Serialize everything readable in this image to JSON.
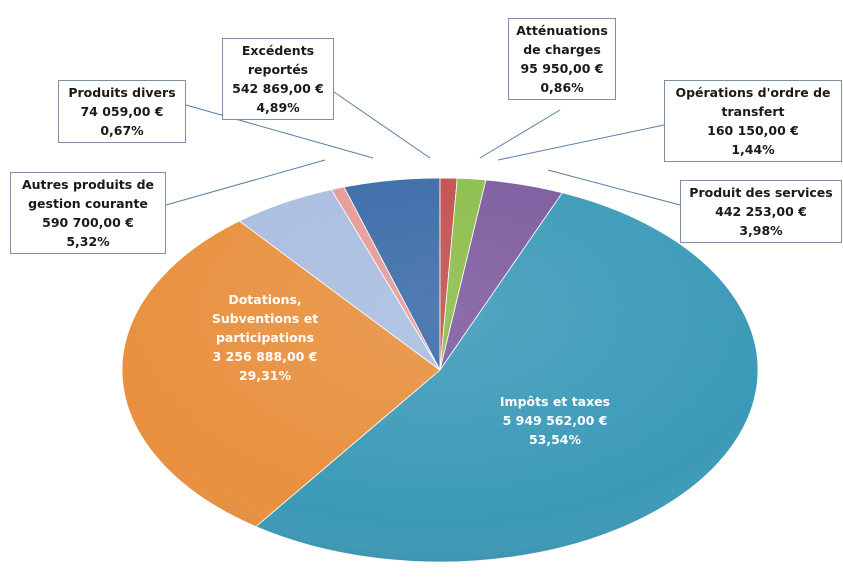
{
  "chart_data": {
    "type": "pie",
    "categories": [
      "Excédents reportés",
      "Atténuations de charges",
      "Opérations d'ordre de transfert",
      "Produit des services",
      "Impôts et taxes",
      "Dotations, Subventions et participations",
      "Autres produits de gestion courante",
      "Produits divers"
    ],
    "values": [
      542869,
      95950,
      160150,
      442253,
      5949562,
      3256888,
      590700,
      74059
    ],
    "value_labels": [
      "542 869,00 €",
      "95 950,00 €",
      "160 150,00 €",
      "442 253,00 €",
      "5 949 562,00 €",
      "3 256 888,00 €",
      "590 700,00 €",
      "74 059,00 €"
    ],
    "percents": [
      4.89,
      0.86,
      1.44,
      3.98,
      53.54,
      29.31,
      5.32,
      0.67
    ],
    "percent_labels": [
      "4,89%",
      "0,86%",
      "1,44%",
      "3,98%",
      "53,54%",
      "29,31%",
      "5,32%",
      "0,67%"
    ],
    "colors": [
      "#3a6aa8",
      "#c0504d",
      "#8bbd4a",
      "#7d5a9e",
      "#3b9ab8",
      "#e8903e",
      "#a9bde0",
      "#e79a98"
    ]
  }
}
